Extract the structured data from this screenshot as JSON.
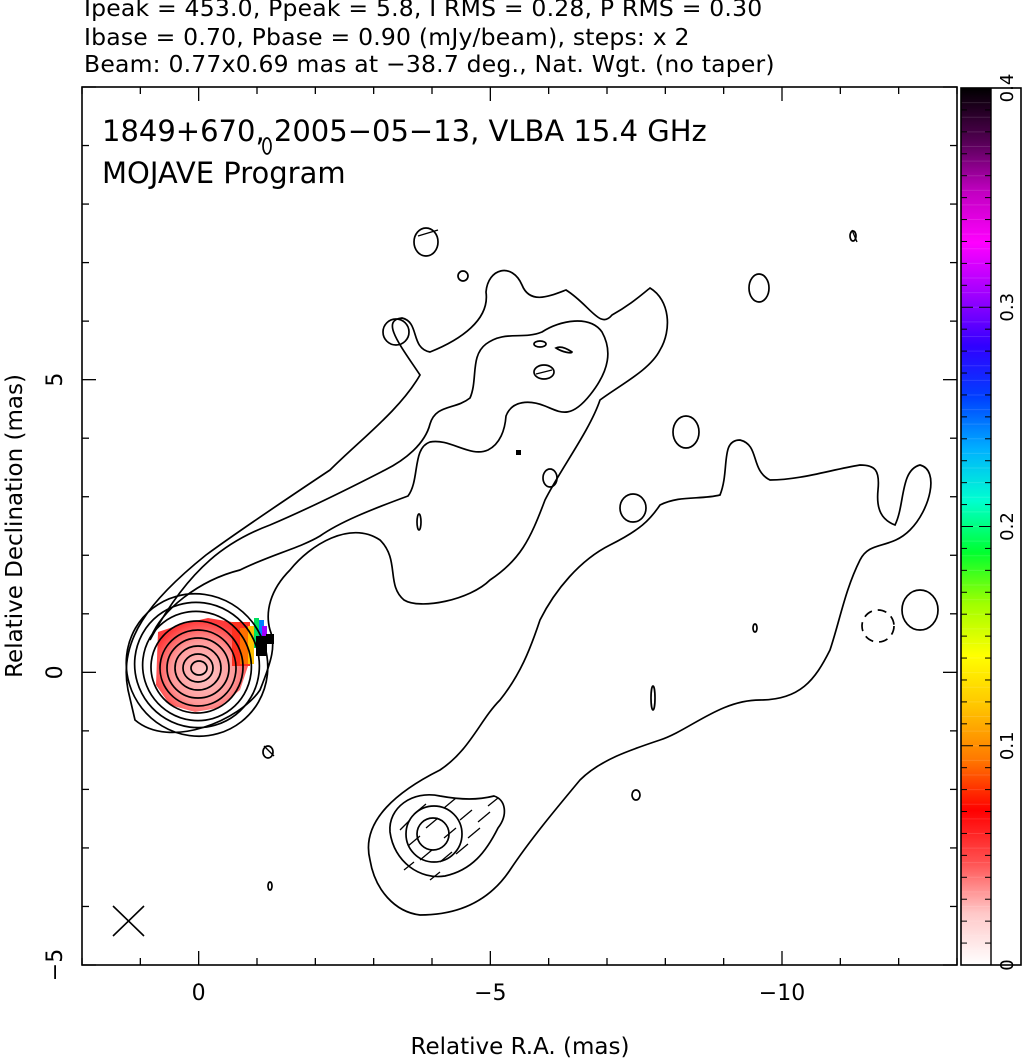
{
  "header": {
    "line1": "Ipeak = 453.0, Ppeak = 5.8, I RMS = 0.28, P RMS = 0.30",
    "line2": "Ibase = 0.70, Pbase = 0.90 (mJy/beam), steps: x 2",
    "line3": "Beam: 0.77x0.69 mas at −38.7 deg., Nat. Wgt. (no taper)"
  },
  "chart_data": {
    "type": "heatmap",
    "title": "1849+670, 2005−05−13, VLBA 15.4 GHz",
    "subtitle": "MOJAVE Program",
    "xlabel": "Relative R.A. (mas)",
    "ylabel": "Relative Declination (mas)",
    "xlim": [
      2.0,
      -13.0
    ],
    "ylim": [
      -5.0,
      10.0
    ],
    "x_ticks": [
      {
        "value": 0,
        "label": "0"
      },
      {
        "value": -5,
        "label": "−5"
      },
      {
        "value": -10,
        "label": "−10"
      }
    ],
    "y_ticks": [
      {
        "value": -5,
        "label": "−5"
      },
      {
        "value": 0,
        "label": "0"
      },
      {
        "value": 5,
        "label": "5"
      }
    ],
    "colorbar": {
      "range": [
        0,
        0.4
      ],
      "ticks": [
        {
          "value": 0,
          "label": "0"
        },
        {
          "value": 0.1,
          "label": "0.1"
        },
        {
          "value": 0.2,
          "label": "0.2"
        },
        {
          "value": 0.3,
          "label": "0.3"
        },
        {
          "value": 0.4,
          "label": "0.4"
        }
      ],
      "colors": [
        "#ffffff",
        "#ffc8c8",
        "#ff5050",
        "#ff0000",
        "#ff7a00",
        "#ffc400",
        "#ffff00",
        "#a0ff00",
        "#00ff30",
        "#00ffd0",
        "#00b0ff",
        "#0040ff",
        "#3000ff",
        "#a000ff",
        "#ff00ff",
        "#c000c0",
        "#500050",
        "#000000"
      ]
    },
    "core": {
      "x": 0.0,
      "y": 0.0
    },
    "feature": {
      "x": -4.1,
      "y": -2.8
    },
    "beam": {
      "major_mas": 0.77,
      "minor_mas": 0.69,
      "pa_deg": -38.7
    },
    "base_contour_mJy_per_beam": 0.7,
    "contour_step_factor": 2
  }
}
